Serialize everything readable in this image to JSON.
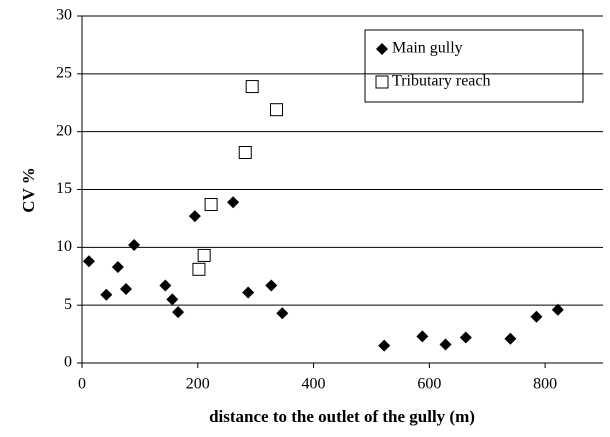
{
  "chart_data": {
    "type": "scatter",
    "xlabel": "distance to the outlet of the gully (m)",
    "ylabel": "CV %",
    "xlim": [
      0,
      900
    ],
    "xticks": [
      0,
      200,
      400,
      600,
      800
    ],
    "ylim": [
      0,
      30
    ],
    "yticks": [
      0,
      5,
      10,
      15,
      20,
      25,
      30
    ],
    "grid": true,
    "legend": "upper right",
    "series": [
      {
        "name": "Main gully",
        "color": "#000000",
        "marker": "diamond",
        "x": [
          12,
          42,
          62,
          76,
          90,
          144,
          156,
          166,
          195,
          261,
          287,
          327,
          346,
          522,
          588,
          628,
          663,
          740,
          785,
          822
        ],
        "values": [
          8.8,
          5.9,
          8.3,
          6.4,
          10.2,
          6.7,
          5.5,
          4.4,
          12.7,
          13.9,
          6.1,
          6.7,
          4.3,
          1.5,
          2.3,
          1.6,
          2.2,
          2.1,
          4.0,
          4.6
        ]
      },
      {
        "name": "Tributary reach",
        "color": "#000000",
        "marker": "square",
        "x": [
          202,
          211,
          223,
          282,
          294,
          336
        ],
        "values": [
          8.1,
          9.3,
          13.7,
          18.2,
          23.9,
          21.9
        ]
      }
    ]
  }
}
